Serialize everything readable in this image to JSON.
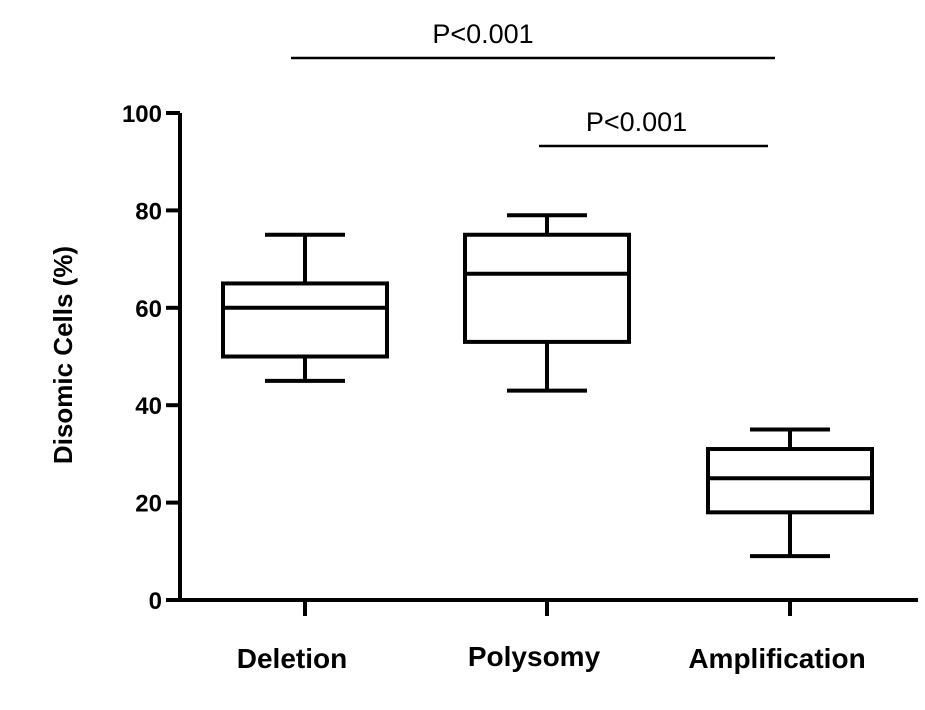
{
  "chart_data": {
    "type": "box",
    "ylabel": "Disomic Cells (%)",
    "xlabel": "",
    "ylim": [
      0,
      100
    ],
    "yticks": [
      0,
      20,
      40,
      60,
      80,
      100
    ],
    "grid": false,
    "categories": [
      "Deletion",
      "Polysomy",
      "Amplification"
    ],
    "boxes": [
      {
        "category": "Deletion",
        "min": 45,
        "q1": 50,
        "median": 60,
        "q3": 65,
        "max": 75
      },
      {
        "category": "Polysomy",
        "min": 43,
        "q1": 53,
        "median": 67,
        "q3": 75,
        "max": 79
      },
      {
        "category": "Amplification",
        "min": 9,
        "q1": 18,
        "median": 25,
        "q3": 31,
        "max": 35
      }
    ],
    "annotations": [
      {
        "label": "P<0.001",
        "from": "Deletion",
        "to": "Amplification"
      },
      {
        "label": "P<0.001",
        "from": "Polysomy",
        "to": "Amplification"
      }
    ]
  }
}
